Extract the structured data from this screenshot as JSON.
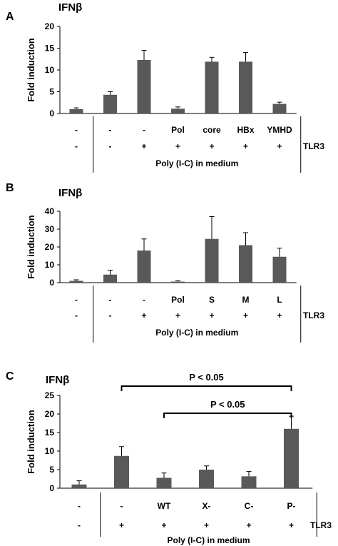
{
  "chart_data": [
    {
      "type": "bar",
      "panel_letter": "A",
      "title": "IFNβ",
      "ylabel": "Fold induction",
      "ylim": [
        0,
        20
      ],
      "yticks": [
        "0",
        "5",
        "10",
        "15",
        "20"
      ],
      "values": [
        1,
        4.3,
        12.3,
        1.1,
        11.9,
        11.9,
        2.2
      ],
      "errors": [
        0.3,
        0.7,
        2.2,
        0.4,
        1.0,
        2.1,
        0.4
      ],
      "row1": [
        "-",
        "-",
        "-",
        "Pol",
        "core",
        "HBx",
        "YMHD"
      ],
      "row2": [
        "-",
        "-",
        "+",
        "+",
        "+",
        "+",
        "+"
      ],
      "row_label": "TLR3",
      "group_label": "Poly (I-C) in medium",
      "bar_color": "#595959"
    },
    {
      "type": "bar",
      "panel_letter": "B",
      "title": "IFNβ",
      "ylabel": "Fold induction",
      "ylim": [
        0,
        40
      ],
      "yticks": [
        "0",
        "10",
        "20",
        "30",
        "40"
      ],
      "values": [
        1,
        4.5,
        18,
        0.6,
        24.5,
        21,
        14.5
      ],
      "errors": [
        0.6,
        2.5,
        6.5,
        0.4,
        12.5,
        7,
        4.8
      ],
      "row1": [
        "-",
        "-",
        "-",
        "Pol",
        "S",
        "M",
        "L"
      ],
      "row2": [
        "-",
        "-",
        "+",
        "+",
        "+",
        "+",
        "+"
      ],
      "row_label": "TLR3",
      "group_label": "Poly (I-C) in medium",
      "bar_color": "#595959"
    },
    {
      "type": "bar",
      "panel_letter": "C",
      "title": "IFNβ",
      "ylabel": "Fold induction",
      "ylim": [
        0,
        25
      ],
      "yticks": [
        "0",
        "5",
        "10",
        "15",
        "20",
        "25"
      ],
      "values": [
        1,
        8.7,
        2.8,
        5,
        3.2,
        16
      ],
      "errors": [
        1,
        2.5,
        1.3,
        1,
        1.3,
        3.4
      ],
      "row1": [
        "-",
        "-",
        "WT",
        "X-",
        "C-",
        "P-"
      ],
      "row2": [
        "-",
        "+",
        "+",
        "+",
        "+",
        "+"
      ],
      "row_label": "TLR3",
      "group_label": "Poly (I-C) in medium",
      "bar_color": "#595959",
      "annotations": [
        {
          "text": "P < 0.05",
          "from_index": 1,
          "to_index": 5
        },
        {
          "text": "P < 0.05",
          "from_index": 2,
          "to_index": 5
        }
      ]
    }
  ]
}
